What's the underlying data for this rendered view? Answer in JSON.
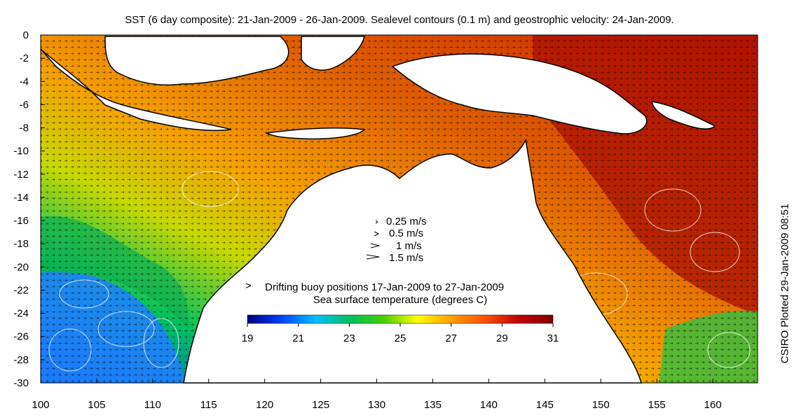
{
  "title": "SST (6 day composite): 21-Jan-2009 - 26-Jan-2009. Sealevel contours (0.1 m) and geostrophic velocity: 24-Jan-2009.",
  "side_note": "CSIRO Plotted 29-Jan-2009 08:51",
  "map": {
    "lon_range": [
      100,
      164
    ],
    "lat_range": [
      -30,
      0
    ],
    "x_ticks": [
      "100",
      "105",
      "110",
      "115",
      "120",
      "125",
      "130",
      "135",
      "140",
      "145",
      "150",
      "155",
      "160"
    ],
    "y_ticks": [
      "0",
      "-2",
      "-4",
      "-6",
      "-8",
      "-10",
      "-12",
      "-14",
      "-16",
      "-18",
      "-20",
      "-22",
      "-24",
      "-26",
      "-28",
      "-30"
    ],
    "colors": {
      "land": "#ffffff",
      "coast": "#000000",
      "contour": "#ffffff",
      "arrow": "#000000"
    }
  },
  "velocity_legend": [
    {
      "label": "0.25 m/s",
      "speed": 0.25
    },
    {
      "label": "0.5 m/s",
      "speed": 0.5
    },
    {
      "label": "1 m/s",
      "speed": 1
    },
    {
      "label": "1.5 m/s",
      "speed": 1.5
    }
  ],
  "buoy_legend": {
    "marker": ">",
    "label": "Drifting buoy positions 17-Jan-2009 to 27-Jan-2009",
    "color": "#ff00ff"
  },
  "colorbar": {
    "title": "Sea surface temperature (degrees C)",
    "min": 19,
    "max": 31,
    "ticks": [
      "19",
      "21",
      "23",
      "25",
      "27",
      "29",
      "31"
    ],
    "stops": [
      "#00007f",
      "#0040ff",
      "#00c0ff",
      "#00c060",
      "#40d000",
      "#ffff00",
      "#ffa000",
      "#ff5000",
      "#c00000",
      "#800000"
    ]
  }
}
